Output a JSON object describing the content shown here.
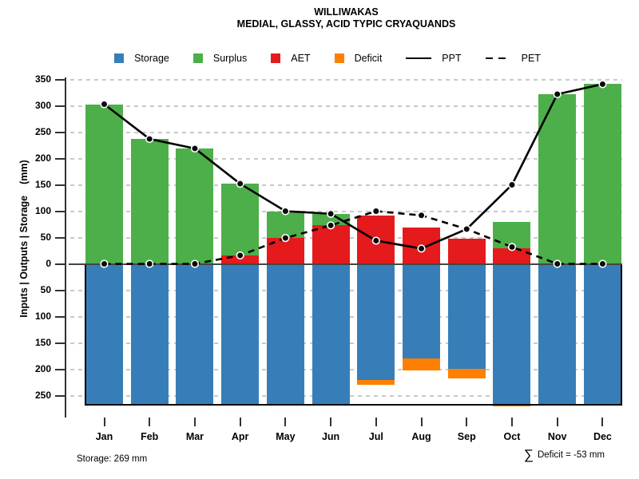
{
  "title": {
    "line1": "WILLIWAKAS",
    "line2": "MEDIAL, GLASSY, ACID TYPIC CRYAQUANDS"
  },
  "legend": {
    "items": [
      {
        "label": "Storage",
        "type": "box",
        "color": "#377EB8"
      },
      {
        "label": "Surplus",
        "type": "box",
        "color": "#4DAF4A"
      },
      {
        "label": "AET",
        "type": "box",
        "color": "#E41A1C"
      },
      {
        "label": "Deficit",
        "type": "box",
        "color": "#FF7F00"
      },
      {
        "label": "PPT",
        "type": "solid-line",
        "color": "#000000"
      },
      {
        "label": "PET",
        "type": "dashed-line",
        "color": "#000000"
      }
    ]
  },
  "y_axis": {
    "label_main": "Inputs | Outputs | Storage",
    "label_unit": "(mm)",
    "ticks": [
      {
        "value": 350,
        "label": "350"
      },
      {
        "value": 300,
        "label": "300"
      },
      {
        "value": 250,
        "label": "250"
      },
      {
        "value": 200,
        "label": "200"
      },
      {
        "value": 150,
        "label": "150"
      },
      {
        "value": 100,
        "label": "100"
      },
      {
        "value": 50,
        "label": "50"
      },
      {
        "value": 0,
        "label": "0"
      },
      {
        "value": -50,
        "label": "50"
      },
      {
        "value": -100,
        "label": "100"
      },
      {
        "value": -150,
        "label": "150"
      },
      {
        "value": -200,
        "label": "200"
      },
      {
        "value": -250,
        "label": "250"
      }
    ]
  },
  "footer": {
    "storage_label": "Storage: 269 mm",
    "deficit_sigma": "∑",
    "deficit_label": "Deficit = -53 mm"
  },
  "chart_data": {
    "type": "bar",
    "title": "WILLIWAKAS",
    "subtitle": "MEDIAL, GLASSY, ACID TYPIC CRYAQUANDS",
    "ylabel": "Inputs | Outputs | Storage (mm)",
    "categories": [
      "Jan",
      "Feb",
      "Mar",
      "Apr",
      "May",
      "Jun",
      "Jul",
      "Aug",
      "Sep",
      "Oct",
      "Nov",
      "Dec"
    ],
    "ylim": [
      -273,
      357
    ],
    "grid": true,
    "legend_position": "top",
    "storage_capacity_mm": 269,
    "deficit_total_mm": -53,
    "stacking": {
      "above_zero_bottom_to_top": [
        "AET",
        "Surplus"
      ],
      "below_zero_top_to_bottom": [
        "Storage",
        "Deficit"
      ]
    },
    "series": [
      {
        "name": "Storage",
        "type": "bar-below",
        "color": "#377EB8",
        "values": [
          269,
          269,
          269,
          269,
          269,
          269,
          221,
          179,
          199,
          269,
          269,
          269
        ]
      },
      {
        "name": "Surplus",
        "type": "bar-above",
        "color": "#4DAF4A",
        "values": [
          303,
          237,
          219,
          136,
          51,
          22,
          0,
          0,
          0,
          50,
          322,
          341
        ]
      },
      {
        "name": "AET",
        "type": "bar-above",
        "color": "#E41A1C",
        "values": [
          0,
          0,
          0,
          16,
          49,
          73,
          91,
          69,
          47,
          30,
          0,
          0
        ]
      },
      {
        "name": "Deficit",
        "type": "bar-below",
        "color": "#FF7F00",
        "values": [
          0,
          0,
          0,
          0,
          0,
          0,
          9,
          23,
          19,
          2,
          0,
          0
        ]
      },
      {
        "name": "PPT",
        "type": "line",
        "style": "solid",
        "color": "#000000",
        "values": [
          303,
          237,
          219,
          152,
          100,
          95,
          44,
          29,
          66,
          150,
          322,
          341
        ]
      },
      {
        "name": "PET",
        "type": "line",
        "style": "dashed",
        "color": "#000000",
        "values": [
          0,
          0,
          0,
          16,
          49,
          73,
          100,
          92,
          66,
          32,
          0,
          0
        ]
      }
    ],
    "colors": {
      "grid": "#c9c9c9",
      "zero_line": "#454545",
      "axis": "#333333",
      "capacity_box_outline": "#000000",
      "marker_fill": "#0a0a0a",
      "marker_ring": "#ffffff"
    }
  }
}
